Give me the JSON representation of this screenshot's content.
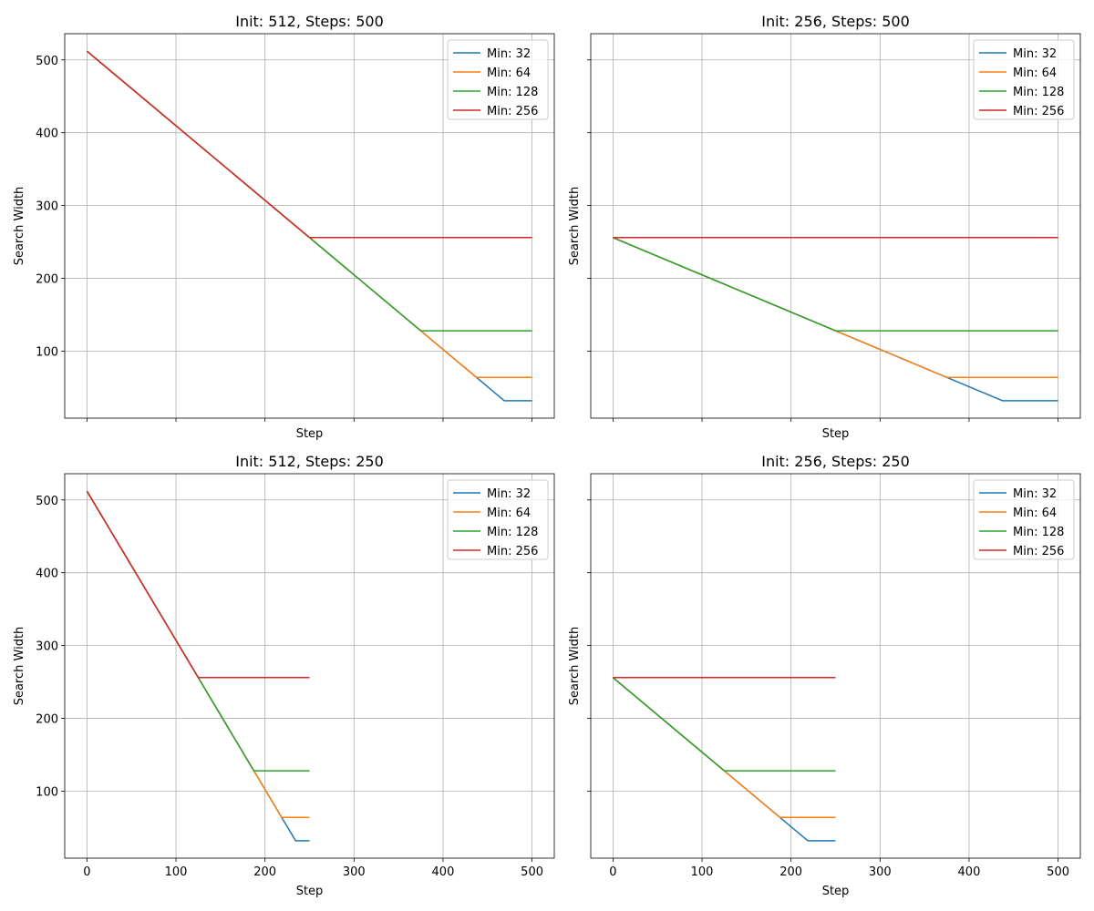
{
  "chart_data": [
    {
      "type": "line",
      "title": "Init: 512, Steps: 500",
      "xlabel": "Step",
      "ylabel": "Search Width",
      "xlim": [
        -25,
        525
      ],
      "ylim": [
        8,
        536
      ],
      "xticks": [
        0,
        100,
        200,
        300,
        400,
        500
      ],
      "yticks": [
        100,
        200,
        300,
        400,
        500
      ],
      "show_xticklabels": false,
      "show_yticklabels": true,
      "grid": true,
      "legend": "top-right",
      "series": [
        {
          "name": "Min: 32",
          "color": "#1f77b4",
          "points": [
            [
              0,
              512
            ],
            [
              468.75,
              32
            ],
            [
              500,
              32
            ]
          ]
        },
        {
          "name": "Min: 64",
          "color": "#ff7f0e",
          "points": [
            [
              0,
              512
            ],
            [
              437.5,
              64
            ],
            [
              500,
              64
            ]
          ]
        },
        {
          "name": "Min: 128",
          "color": "#2ca02c",
          "points": [
            [
              0,
              512
            ],
            [
              375,
              128
            ],
            [
              500,
              128
            ]
          ]
        },
        {
          "name": "Min: 256",
          "color": "#d62728",
          "points": [
            [
              0,
              512
            ],
            [
              250,
              256
            ],
            [
              500,
              256
            ]
          ]
        }
      ]
    },
    {
      "type": "line",
      "title": "Init: 256, Steps: 500",
      "xlabel": "Step",
      "ylabel": "Search Width",
      "xlim": [
        -25,
        525
      ],
      "ylim": [
        8,
        536
      ],
      "xticks": [
        0,
        100,
        200,
        300,
        400,
        500
      ],
      "yticks": [
        100,
        200,
        300,
        400,
        500
      ],
      "show_xticklabels": false,
      "show_yticklabels": false,
      "grid": true,
      "legend": "top-right",
      "series": [
        {
          "name": "Min: 32",
          "color": "#1f77b4",
          "points": [
            [
              0,
              256
            ],
            [
              437.5,
              32
            ],
            [
              500,
              32
            ]
          ]
        },
        {
          "name": "Min: 64",
          "color": "#ff7f0e",
          "points": [
            [
              0,
              256
            ],
            [
              375,
              64
            ],
            [
              500,
              64
            ]
          ]
        },
        {
          "name": "Min: 128",
          "color": "#2ca02c",
          "points": [
            [
              0,
              256
            ],
            [
              250,
              128
            ],
            [
              500,
              128
            ]
          ]
        },
        {
          "name": "Min: 256",
          "color": "#d62728",
          "points": [
            [
              0,
              256
            ],
            [
              500,
              256
            ]
          ]
        }
      ]
    },
    {
      "type": "line",
      "title": "Init: 512, Steps: 250",
      "xlabel": "Step",
      "ylabel": "Search Width",
      "xlim": [
        -25,
        525
      ],
      "ylim": [
        8,
        536
      ],
      "xticks": [
        0,
        100,
        200,
        300,
        400,
        500
      ],
      "yticks": [
        100,
        200,
        300,
        400,
        500
      ],
      "show_xticklabels": true,
      "show_yticklabels": true,
      "grid": true,
      "legend": "top-right",
      "series": [
        {
          "name": "Min: 32",
          "color": "#1f77b4",
          "points": [
            [
              0,
              512
            ],
            [
              234.375,
              32
            ],
            [
              250,
              32
            ]
          ]
        },
        {
          "name": "Min: 64",
          "color": "#ff7f0e",
          "points": [
            [
              0,
              512
            ],
            [
              218.75,
              64
            ],
            [
              250,
              64
            ]
          ]
        },
        {
          "name": "Min: 128",
          "color": "#2ca02c",
          "points": [
            [
              0,
              512
            ],
            [
              187.5,
              128
            ],
            [
              250,
              128
            ]
          ]
        },
        {
          "name": "Min: 256",
          "color": "#d62728",
          "points": [
            [
              0,
              512
            ],
            [
              125,
              256
            ],
            [
              250,
              256
            ]
          ]
        }
      ]
    },
    {
      "type": "line",
      "title": "Init: 256, Steps: 250",
      "xlabel": "Step",
      "ylabel": "Search Width",
      "xlim": [
        -25,
        525
      ],
      "ylim": [
        8,
        536
      ],
      "xticks": [
        0,
        100,
        200,
        300,
        400,
        500
      ],
      "yticks": [
        100,
        200,
        300,
        400,
        500
      ],
      "show_xticklabels": true,
      "show_yticklabels": false,
      "grid": true,
      "legend": "top-right",
      "series": [
        {
          "name": "Min: 32",
          "color": "#1f77b4",
          "points": [
            [
              0,
              256
            ],
            [
              218.75,
              32
            ],
            [
              250,
              32
            ]
          ]
        },
        {
          "name": "Min: 64",
          "color": "#ff7f0e",
          "points": [
            [
              0,
              256
            ],
            [
              187.5,
              64
            ],
            [
              250,
              64
            ]
          ]
        },
        {
          "name": "Min: 128",
          "color": "#2ca02c",
          "points": [
            [
              0,
              256
            ],
            [
              125,
              128
            ],
            [
              250,
              128
            ]
          ]
        },
        {
          "name": "Min: 256",
          "color": "#d62728",
          "points": [
            [
              0,
              256
            ],
            [
              250,
              256
            ]
          ]
        }
      ]
    }
  ]
}
